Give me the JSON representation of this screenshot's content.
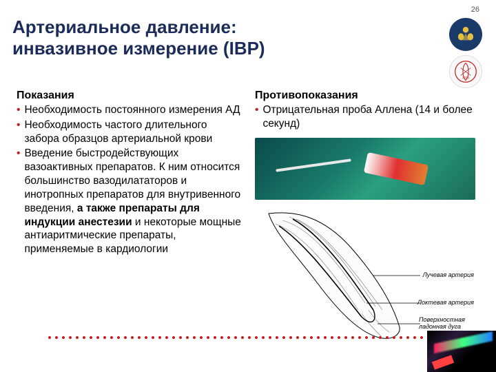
{
  "page_number": "26",
  "title_line1": "Артериальное давление:",
  "title_line2": "инвазивное измерение (IBP)",
  "left": {
    "header": "Показания",
    "items": [
      {
        "text": "Необходимость постоянного измерения АД"
      },
      {
        "text": "Необходимость частого длительного забора образцов артериальной крови"
      },
      {
        "prefix": "Введение быстродействующих вазоактивных препаратов. К ним относится большинство вазодилататоров и инотропных препаратов для внутривенного введения, ",
        "bold": "а также препараты для индукции анестезии",
        "suffix": " и некоторые мощные антиаритмические препараты, применяемые в кардиологии"
      }
    ]
  },
  "right": {
    "header": "Противопоказания",
    "items": [
      {
        "text": "Отрицательная проба Аллена (14 и более секунд)"
      }
    ],
    "artery_labels": {
      "radial": "Лучевая артерия",
      "ulnar": "Локтевая артерия",
      "arch": "Поверхностная ладонная дуга"
    }
  },
  "colors": {
    "title": "#1b2b5a",
    "bullet": "#c02020",
    "dots": "#c02020"
  }
}
